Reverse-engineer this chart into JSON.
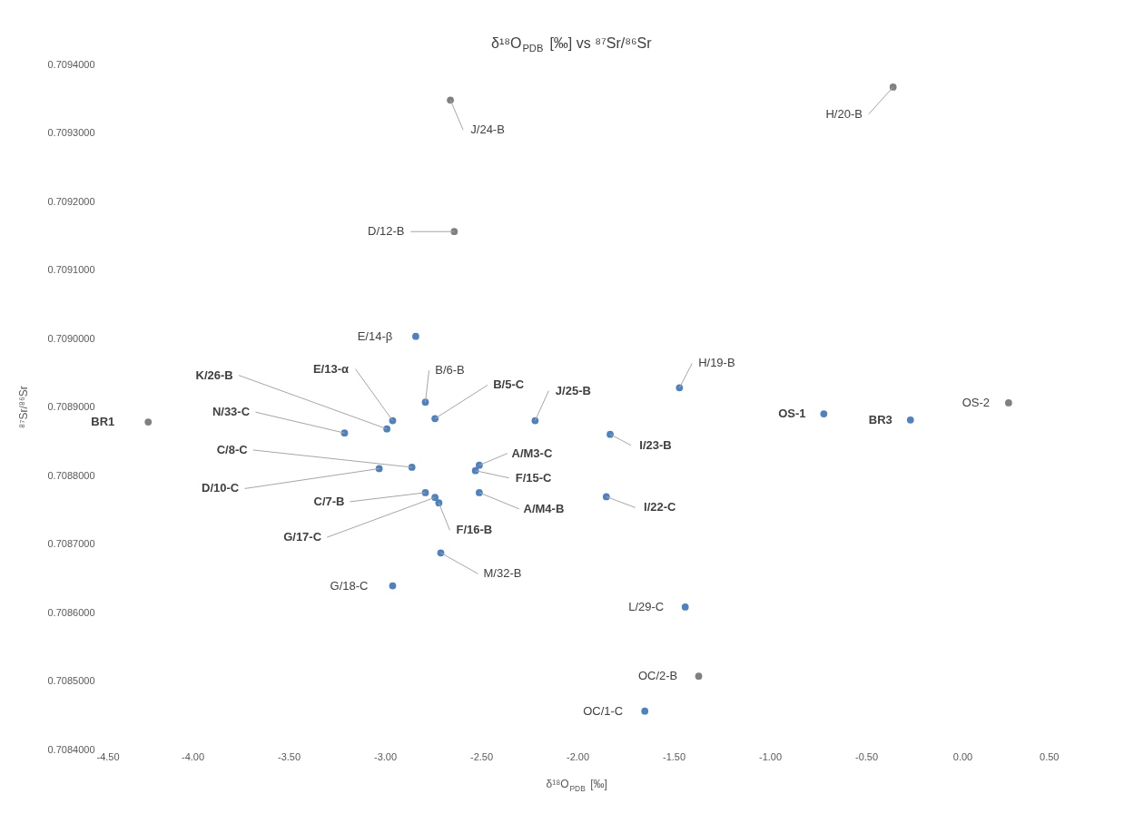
{
  "chart_data": {
    "type": "scatter",
    "title": "δ¹⁸O$_{PDB}$ [‰] vs ⁸⁷Sr/⁸⁶Sr",
    "xlabel": "δ¹⁸O$_{PDB}$ [‰]",
    "ylabel": "⁸⁷Sr/⁸⁶Sr",
    "xlim": [
      -4.5,
      0.5
    ],
    "xticks": [
      {
        "value": -4.5,
        "label": "-4.50"
      },
      {
        "value": -4.0,
        "label": "-4.00"
      },
      {
        "value": -3.5,
        "label": "-3.50"
      },
      {
        "value": -3.0,
        "label": "-3.00"
      },
      {
        "value": -2.5,
        "label": "-2.50"
      },
      {
        "value": -2.0,
        "label": "-2.00"
      },
      {
        "value": -1.5,
        "label": "-1.50"
      },
      {
        "value": -1.0,
        "label": "-1.00"
      },
      {
        "value": -0.5,
        "label": "-0.50"
      },
      {
        "value": 0.0,
        "label": "0.00"
      },
      {
        "value": 0.5,
        "label": "0.50"
      }
    ],
    "ylim": [
      0.7084,
      0.7094
    ],
    "yticks": [
      {
        "value": 0.7084,
        "label": "0.7084000"
      },
      {
        "value": 0.7085,
        "label": "0.7085000"
      },
      {
        "value": 0.7086,
        "label": "0.7086000"
      },
      {
        "value": 0.7087,
        "label": "0.7087000"
      },
      {
        "value": 0.7088,
        "label": "0.7088000"
      },
      {
        "value": 0.7089,
        "label": "0.7089000"
      },
      {
        "value": 0.709,
        "label": "0.7090000"
      },
      {
        "value": 0.7091,
        "label": "0.7091000"
      },
      {
        "value": 0.7092,
        "label": "0.7092000"
      },
      {
        "value": 0.7093,
        "label": "0.7093000"
      },
      {
        "value": 0.7094,
        "label": "0.7094000"
      }
    ],
    "grid": false,
    "marker": "circle",
    "series": [
      {
        "color": "#808080",
        "x": [
          -4.23,
          -2.66,
          -0.36,
          -2.64,
          0.24,
          -1.37
        ],
        "values": [
          0.708878,
          0.709348,
          0.709367,
          0.709156,
          0.708906,
          0.708507
        ]
      },
      {
        "color": "#4f81bd",
        "x": [
          -2.84,
          -2.96,
          -2.99,
          -2.79,
          -2.74,
          -2.22,
          -3.21,
          -2.86,
          -3.03,
          -2.51,
          -2.53,
          -2.51,
          -2.79,
          -2.74,
          -2.72,
          -2.71,
          -2.96,
          -1.47,
          -1.83,
          -1.85,
          -0.72,
          -0.27,
          -1.44,
          -1.65
        ],
        "values": [
          0.709003,
          0.70888,
          0.708868,
          0.708907,
          0.708883,
          0.70888,
          0.708862,
          0.708812,
          0.70881,
          0.708815,
          0.708807,
          0.708775,
          0.708775,
          0.708768,
          0.70876,
          0.708687,
          0.708639,
          0.708928,
          0.70886,
          0.708769,
          0.70889,
          0.708881,
          0.708608,
          0.708456
        ]
      }
    ],
    "annotations": [
      {
        "text": "BR1",
        "x": -4.23,
        "y": 0.708878
      },
      {
        "text": "J/24-B",
        "x": -2.66,
        "y": 0.709348
      },
      {
        "text": "H/20-B",
        "x": -0.36,
        "y": 0.709367
      },
      {
        "text": "D/12-B",
        "x": -2.64,
        "y": 0.709156
      },
      {
        "text": "E/14-β",
        "x": -2.84,
        "y": 0.709003
      },
      {
        "text": "E/13-α",
        "x": -2.96,
        "y": 0.70888
      },
      {
        "text": "K/26-B",
        "x": -2.99,
        "y": 0.708868
      },
      {
        "text": "B/6-B",
        "x": -2.79,
        "y": 0.708907
      },
      {
        "text": "B/5-C",
        "x": -2.74,
        "y": 0.708883
      },
      {
        "text": "J/25-B",
        "x": -2.22,
        "y": 0.70888
      },
      {
        "text": "N/33-C",
        "x": -3.21,
        "y": 0.708862
      },
      {
        "text": "C/8-C",
        "x": -2.86,
        "y": 0.708812
      },
      {
        "text": "D/10-C",
        "x": -3.03,
        "y": 0.70881
      },
      {
        "text": "A/M3-C",
        "x": -2.51,
        "y": 0.708815
      },
      {
        "text": "F/15-C",
        "x": -2.53,
        "y": 0.708807
      },
      {
        "text": "A/M4-B",
        "x": -2.51,
        "y": 0.708775
      },
      {
        "text": "C/7-B",
        "x": -2.79,
        "y": 0.708775
      },
      {
        "text": "G/17-C",
        "x": -2.74,
        "y": 0.708768
      },
      {
        "text": "F/16-B",
        "x": -2.72,
        "y": 0.70876
      },
      {
        "text": "M/32-B",
        "x": -2.71,
        "y": 0.708687
      },
      {
        "text": "G/18-C",
        "x": -2.96,
        "y": 0.708639
      },
      {
        "text": "H/19-B",
        "x": -1.47,
        "y": 0.708928
      },
      {
        "text": "I/23-B",
        "x": -1.83,
        "y": 0.70886
      },
      {
        "text": "I/22-C",
        "x": -1.85,
        "y": 0.708769
      },
      {
        "text": "OS-1",
        "x": -0.72,
        "y": 0.70889
      },
      {
        "text": "BR3",
        "x": -0.27,
        "y": 0.708881
      },
      {
        "text": "OS-2",
        "x": 0.24,
        "y": 0.708906
      },
      {
        "text": "L/29-C",
        "x": -1.44,
        "y": 0.708608
      },
      {
        "text": "OC/2-B",
        "x": -1.37,
        "y": 0.708507
      },
      {
        "text": "OC/1-C",
        "x": -1.65,
        "y": 0.708456
      }
    ]
  }
}
